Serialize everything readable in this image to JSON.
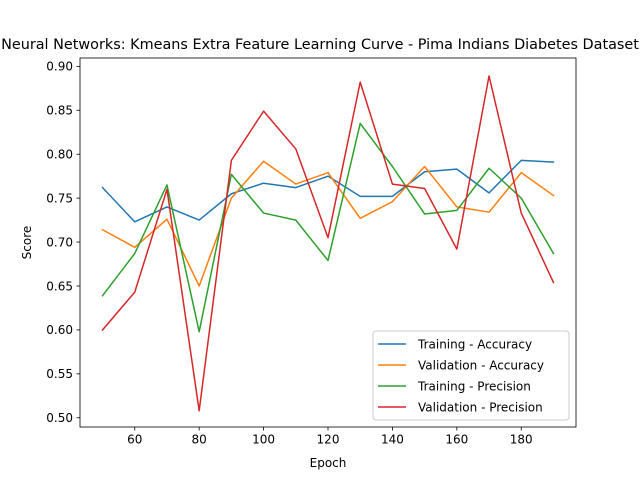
{
  "chart_data": {
    "type": "line",
    "title": "Neural Networks: Kmeans Extra Feature Learning Curve - Pima Indians Diabetes Dataset",
    "xlabel": "Epoch",
    "ylabel": "Score",
    "xlim": [
      43,
      197
    ],
    "ylim": [
      0.4895,
      0.9095
    ],
    "x_ticks": [
      60,
      80,
      100,
      120,
      140,
      160,
      180
    ],
    "y_ticks": [
      0.5,
      0.55,
      0.6,
      0.65,
      0.7,
      0.75,
      0.8,
      0.85,
      0.9
    ],
    "grid": false,
    "legend_position": "lower-right",
    "x": [
      50,
      60,
      70,
      80,
      90,
      100,
      110,
      120,
      130,
      140,
      150,
      160,
      170,
      180,
      190
    ],
    "series": [
      {
        "name": "Training - Accuracy",
        "color": "#1f77b4",
        "values": [
          0.762,
          0.723,
          0.74,
          0.725,
          0.755,
          0.767,
          0.762,
          0.775,
          0.752,
          0.752,
          0.78,
          0.783,
          0.756,
          0.793,
          0.791
        ]
      },
      {
        "name": "Validation - Accuracy",
        "color": "#ff7f0e",
        "values": [
          0.714,
          0.694,
          0.726,
          0.65,
          0.75,
          0.792,
          0.766,
          0.779,
          0.727,
          0.746,
          0.786,
          0.74,
          0.734,
          0.779,
          0.753
        ]
      },
      {
        "name": "Training - Precision",
        "color": "#2ca02c",
        "values": [
          0.639,
          0.687,
          0.765,
          0.598,
          0.777,
          0.733,
          0.725,
          0.679,
          0.835,
          0.786,
          0.732,
          0.736,
          0.784,
          0.75,
          0.687
        ]
      },
      {
        "name": "Validation - Precision",
        "color": "#d62728",
        "values": [
          0.6,
          0.643,
          0.76,
          0.508,
          0.793,
          0.849,
          0.806,
          0.705,
          0.882,
          0.766,
          0.761,
          0.692,
          0.889,
          0.733,
          0.654
        ]
      }
    ]
  }
}
